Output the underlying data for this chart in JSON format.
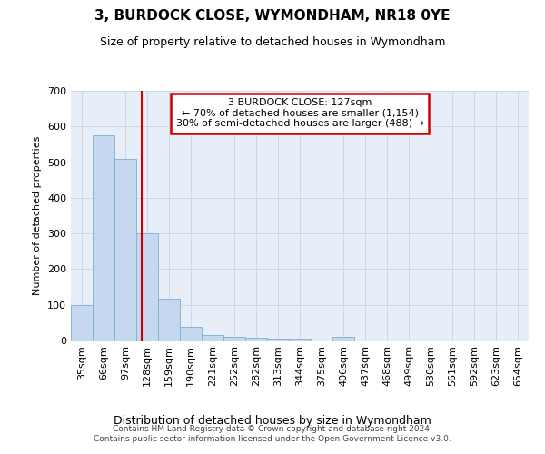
{
  "title": "3, BURDOCK CLOSE, WYMONDHAM, NR18 0YE",
  "subtitle": "Size of property relative to detached houses in Wymondham",
  "xlabel": "Distribution of detached houses by size in Wymondham",
  "ylabel": "Number of detached properties",
  "footer_line1": "Contains HM Land Registry data © Crown copyright and database right 2024.",
  "footer_line2": "Contains public sector information licensed under the Open Government Licence v3.0.",
  "categories": [
    "35sqm",
    "66sqm",
    "97sqm",
    "128sqm",
    "159sqm",
    "190sqm",
    "221sqm",
    "252sqm",
    "282sqm",
    "313sqm",
    "344sqm",
    "375sqm",
    "406sqm",
    "437sqm",
    "468sqm",
    "499sqm",
    "530sqm",
    "561sqm",
    "592sqm",
    "623sqm",
    "654sqm"
  ],
  "values": [
    100,
    575,
    510,
    300,
    118,
    38,
    15,
    10,
    8,
    5,
    5,
    0,
    10,
    0,
    0,
    0,
    0,
    0,
    0,
    0,
    0
  ],
  "bar_color": "#c5d8ef",
  "bar_edge_color": "#7baed4",
  "property_line_x": 2.75,
  "annotation_line1": "3 BURDOCK CLOSE: 127sqm",
  "annotation_line2": "← 70% of detached houses are smaller (1,154)",
  "annotation_line3": "30% of semi-detached houses are larger (488) →",
  "annotation_box_facecolor": "#ffffff",
  "annotation_box_edgecolor": "#cc0000",
  "vline_color": "#cc0000",
  "grid_color": "#ccd8ea",
  "plot_bg_color": "#e8eef8",
  "fig_bg_color": "#ffffff",
  "ylim": [
    0,
    700
  ],
  "yticks": [
    0,
    100,
    200,
    300,
    400,
    500,
    600,
    700
  ],
  "title_fontsize": 11,
  "subtitle_fontsize": 9,
  "tick_fontsize": 8,
  "ylabel_fontsize": 8,
  "xlabel_fontsize": 9,
  "footer_fontsize": 6.5,
  "annot_fontsize": 8
}
